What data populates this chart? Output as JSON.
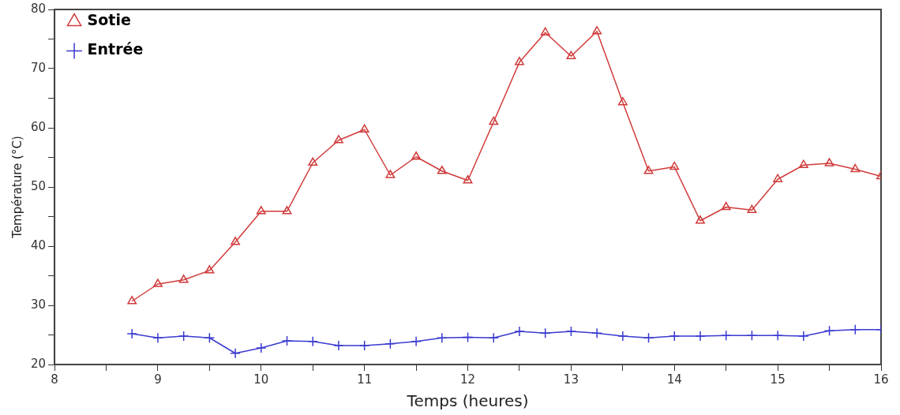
{
  "chart_data": {
    "type": "line",
    "xlabel": "Temps (heures)",
    "ylabel": "Température (°C)",
    "x": [
      8.75,
      9,
      9.25,
      9.5,
      9.75,
      10,
      10.25,
      10.5,
      10.75,
      11,
      11.25,
      11.5,
      11.75,
      12,
      12.25,
      12.5,
      12.75,
      13,
      13.25,
      13.5,
      13.75,
      14,
      14.25,
      14.5,
      14.75,
      15,
      15.25,
      15.5,
      15.75,
      16
    ],
    "series": [
      {
        "name": "Sotie",
        "color": "#d03a3a",
        "marker": "triangle",
        "values": [
          30.7,
          33.6,
          34.3,
          35.9,
          40.7,
          45.9,
          45.9,
          54.1,
          57.9,
          59.7,
          52.0,
          55.1,
          52.7,
          51.1,
          61.0,
          71.1,
          76.1,
          72.1,
          76.3,
          64.3,
          52.7,
          53.4,
          44.3,
          46.6,
          46.1,
          51.3,
          53.7,
          54.0,
          53.0,
          51.8
        ]
      },
      {
        "name": "Entrée",
        "color": "#3a3ad0",
        "marker": "cross",
        "values": [
          25.2,
          24.5,
          24.8,
          24.5,
          21.9,
          22.8,
          24.0,
          23.9,
          23.2,
          23.2,
          23.5,
          23.9,
          24.5,
          24.6,
          24.5,
          25.6,
          25.3,
          25.6,
          25.3,
          24.8,
          24.5,
          24.8,
          24.8,
          24.9,
          24.9,
          24.9,
          24.8,
          25.7,
          25.9,
          25.9
        ]
      }
    ],
    "xlim": [
      8,
      16
    ],
    "xticks": [
      8,
      {
        "value": 8.5,
        "label": null
      },
      9,
      {
        "value": 9.5,
        "label": null
      },
      10,
      {
        "value": 10.5,
        "label": null
      },
      11,
      {
        "value": 11.5,
        "label": null
      },
      12,
      {
        "value": 12.5,
        "label": null
      },
      13,
      {
        "value": 13.5,
        "label": null
      },
      14,
      {
        "value": 14.5,
        "label": null
      },
      15,
      {
        "value": 15.5,
        "label": null
      },
      16
    ],
    "ylim": [
      20,
      80
    ],
    "yticks": [
      20,
      {
        "value": 25,
        "label": null
      },
      30,
      {
        "value": 35,
        "label": null
      },
      40,
      {
        "value": 45,
        "label": null
      },
      50,
      {
        "value": 55,
        "label": null
      },
      60,
      {
        "value": 65,
        "label": null
      },
      70,
      {
        "value": 75,
        "label": null
      },
      80
    ],
    "grid": false,
    "legend": "top left",
    "line_style": "solid"
  }
}
